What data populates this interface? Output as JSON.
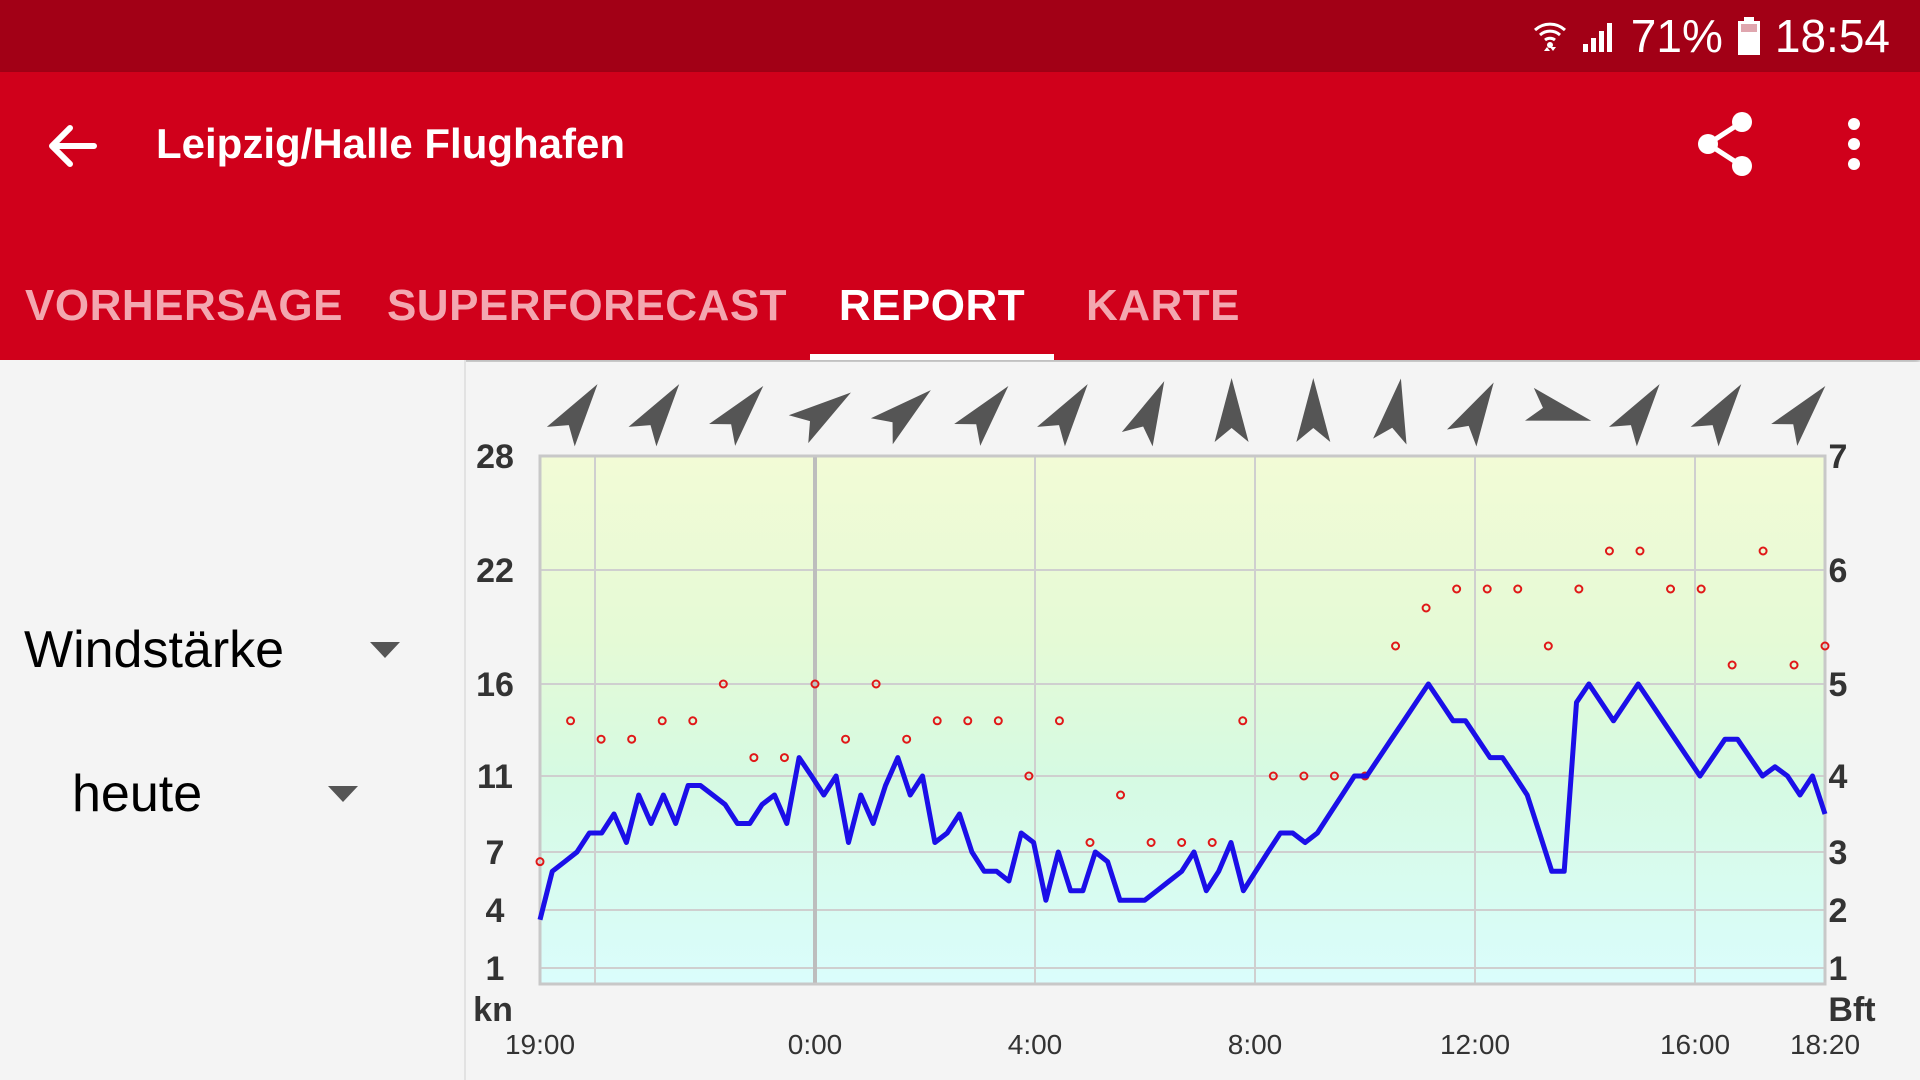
{
  "status": {
    "battery": "71%",
    "time": "18:54"
  },
  "toolbar": {
    "title": "Leipzig/Halle Flughafen"
  },
  "tabs": [
    "VORHERSAGE",
    "SUPERFORECAST",
    "REPORT",
    "KARTE"
  ],
  "active_tab": "REPORT",
  "filters": {
    "parameter": "Windstärke",
    "period": "heute"
  },
  "chart_data": {
    "type": "line",
    "x_ticks": [
      "19:00",
      "0:00",
      "4:00",
      "8:00",
      "12:00",
      "16:00",
      "18:20"
    ],
    "left_axis_unit": "kn",
    "right_axis_unit": "Bft",
    "left_ticks": [
      1,
      4,
      7,
      11,
      16,
      22,
      28
    ],
    "right_ticks": [
      1,
      2,
      3,
      4,
      5,
      6,
      7
    ],
    "ylim": [
      0.5,
      28
    ],
    "series": [
      {
        "values": [
          3.5,
          6,
          6.5,
          7,
          8,
          8,
          9,
          7.5,
          10,
          8.5,
          10,
          8.5,
          10.5,
          10.5,
          10,
          9.5,
          8.5,
          8.5,
          9.5,
          10,
          8.5,
          12,
          11,
          10,
          11,
          7.5,
          10,
          8.5,
          10.5,
          12,
          10,
          11,
          7.5,
          8,
          9,
          7,
          6,
          6,
          5.5,
          8,
          7.5,
          4.5,
          7,
          5,
          5,
          7,
          6.5,
          4.5,
          4.5,
          4.5,
          5,
          5.5,
          6,
          7,
          5,
          6,
          7.5,
          5,
          6,
          7,
          8,
          8,
          7.5,
          8,
          9,
          10,
          11,
          11,
          12,
          13,
          14,
          15,
          16,
          15,
          14,
          14,
          13,
          12,
          12,
          11,
          10,
          8,
          6,
          6,
          15,
          16,
          15,
          14,
          15,
          16,
          15,
          14,
          13,
          12,
          11,
          12,
          13,
          13,
          12,
          11,
          11.5,
          11,
          10,
          11,
          9
        ]
      },
      {
        "values": [
          6.5,
          14,
          13,
          13,
          14,
          14,
          16,
          12,
          12,
          16,
          13,
          16,
          13,
          14,
          14,
          14,
          11,
          14,
          7.5,
          10,
          7.5,
          7.5,
          7.5,
          14,
          11,
          11,
          11,
          11,
          18,
          20,
          21,
          21,
          21,
          18,
          21,
          23,
          23,
          21,
          21,
          17,
          23,
          17,
          18
        ]
      }
    ],
    "direction_arrows": 16
  }
}
